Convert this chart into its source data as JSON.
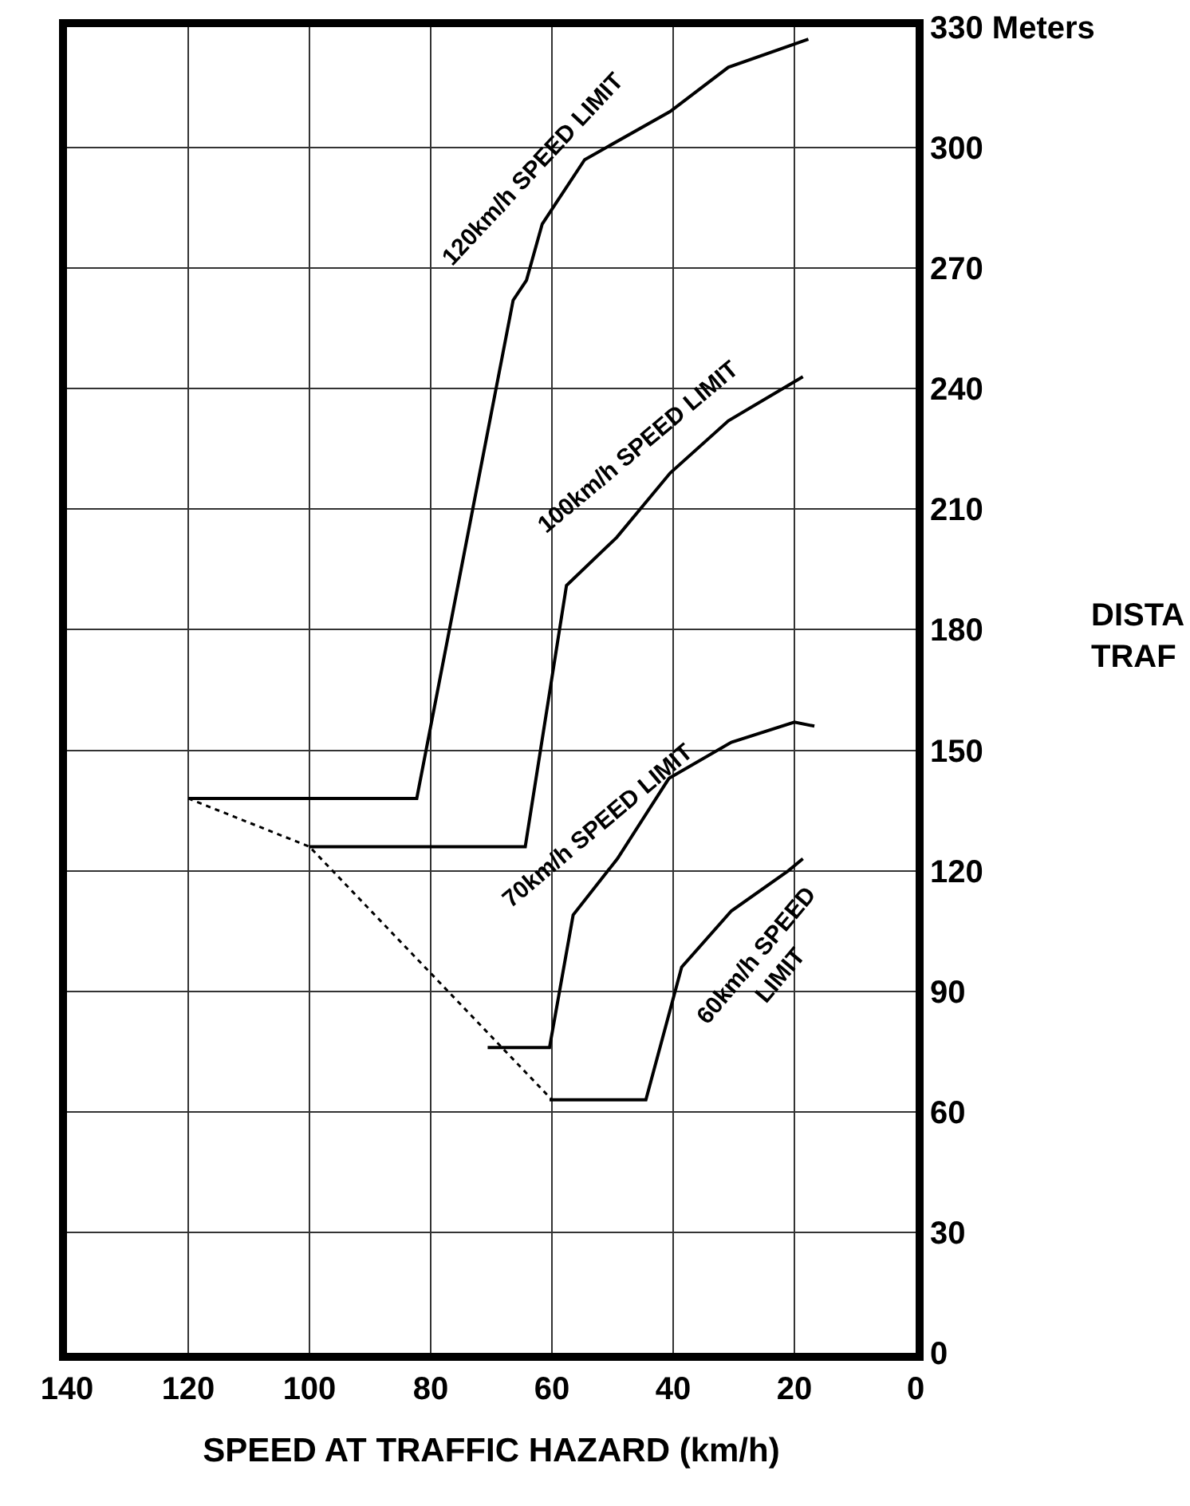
{
  "chart_data": {
    "type": "line",
    "xlabel": "SPEED AT TRAFFIC HAZARD (km/h)",
    "ylabel": "DISTA\nTRAF",
    "xlim": [
      140,
      0
    ],
    "xticks": [
      140,
      120,
      100,
      80,
      60,
      40,
      20,
      0
    ],
    "ylim": [
      0,
      330
    ],
    "yticks": [
      0,
      30,
      60,
      90,
      120,
      150,
      180,
      210,
      240,
      270,
      300,
      {
        "value": 330,
        "label": "330 Meters"
      }
    ],
    "grid": true,
    "legend": false,
    "marker": "none",
    "series": [
      {
        "name": "120km/h SPEED LIMIT",
        "color": "#000000",
        "line_style": "solid",
        "x": [
          120,
          82.3,
          66.4,
          64.2,
          61.6,
          54.6,
          40.5,
          30.9,
          17.7
        ],
        "values": [
          138,
          138,
          262,
          267,
          281,
          297,
          309,
          320,
          327
        ]
      },
      {
        "name": "100km/h SPEED LIMIT",
        "color": "#000000",
        "line_style": "solid",
        "x": [
          100,
          64.4,
          57.6,
          49.3,
          40.5,
          30.9,
          18.6
        ],
        "values": [
          126,
          126,
          191,
          203,
          219,
          232,
          243
        ]
      },
      {
        "name": "70km/h SPEED LIMIT",
        "color": "#000000",
        "line_style": "solid",
        "x": [
          70.6,
          60.4,
          56.5,
          49.2,
          40.7,
          30.4,
          20,
          16.7
        ],
        "values": [
          76,
          76,
          109,
          123,
          143,
          152,
          157,
          156
        ]
      },
      {
        "name": "60km/h SPEED\nLIMIT",
        "color": "#000000",
        "line_style": "solid",
        "x": [
          60.4,
          44.5,
          38.6,
          30.4,
          21,
          18.6
        ],
        "values": [
          63,
          63,
          96,
          110,
          120,
          123
        ]
      },
      {
        "color": "#000000",
        "line_style": "dotted",
        "x": [
          120,
          100,
          60
        ],
        "values": [
          138,
          126,
          63
        ]
      }
    ]
  }
}
